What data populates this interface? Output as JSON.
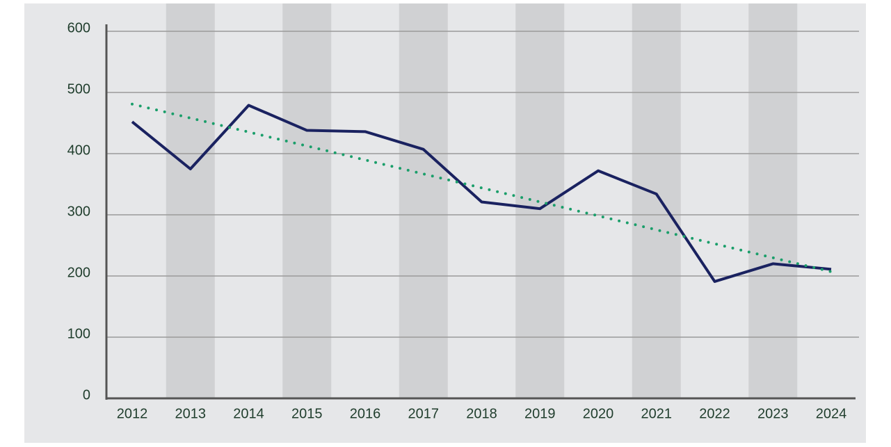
{
  "chart_data": {
    "type": "line",
    "categories": [
      "2012",
      "2013",
      "2014",
      "2015",
      "2016",
      "2017",
      "2018",
      "2019",
      "2020",
      "2021",
      "2022",
      "2023",
      "2024"
    ],
    "series": [
      {
        "color": "#1a2260",
        "values": [
          452,
          375,
          479,
          438,
          436,
          407,
          321,
          310,
          372,
          334,
          191,
          220,
          211
        ]
      }
    ],
    "trend": {
      "color": "#1a9e6a",
      "values": [
        481,
        207
      ]
    },
    "ylim": [
      0,
      600
    ],
    "yticks": [
      0,
      100,
      200,
      300,
      400,
      500,
      600
    ],
    "grid": true,
    "bands": true
  }
}
